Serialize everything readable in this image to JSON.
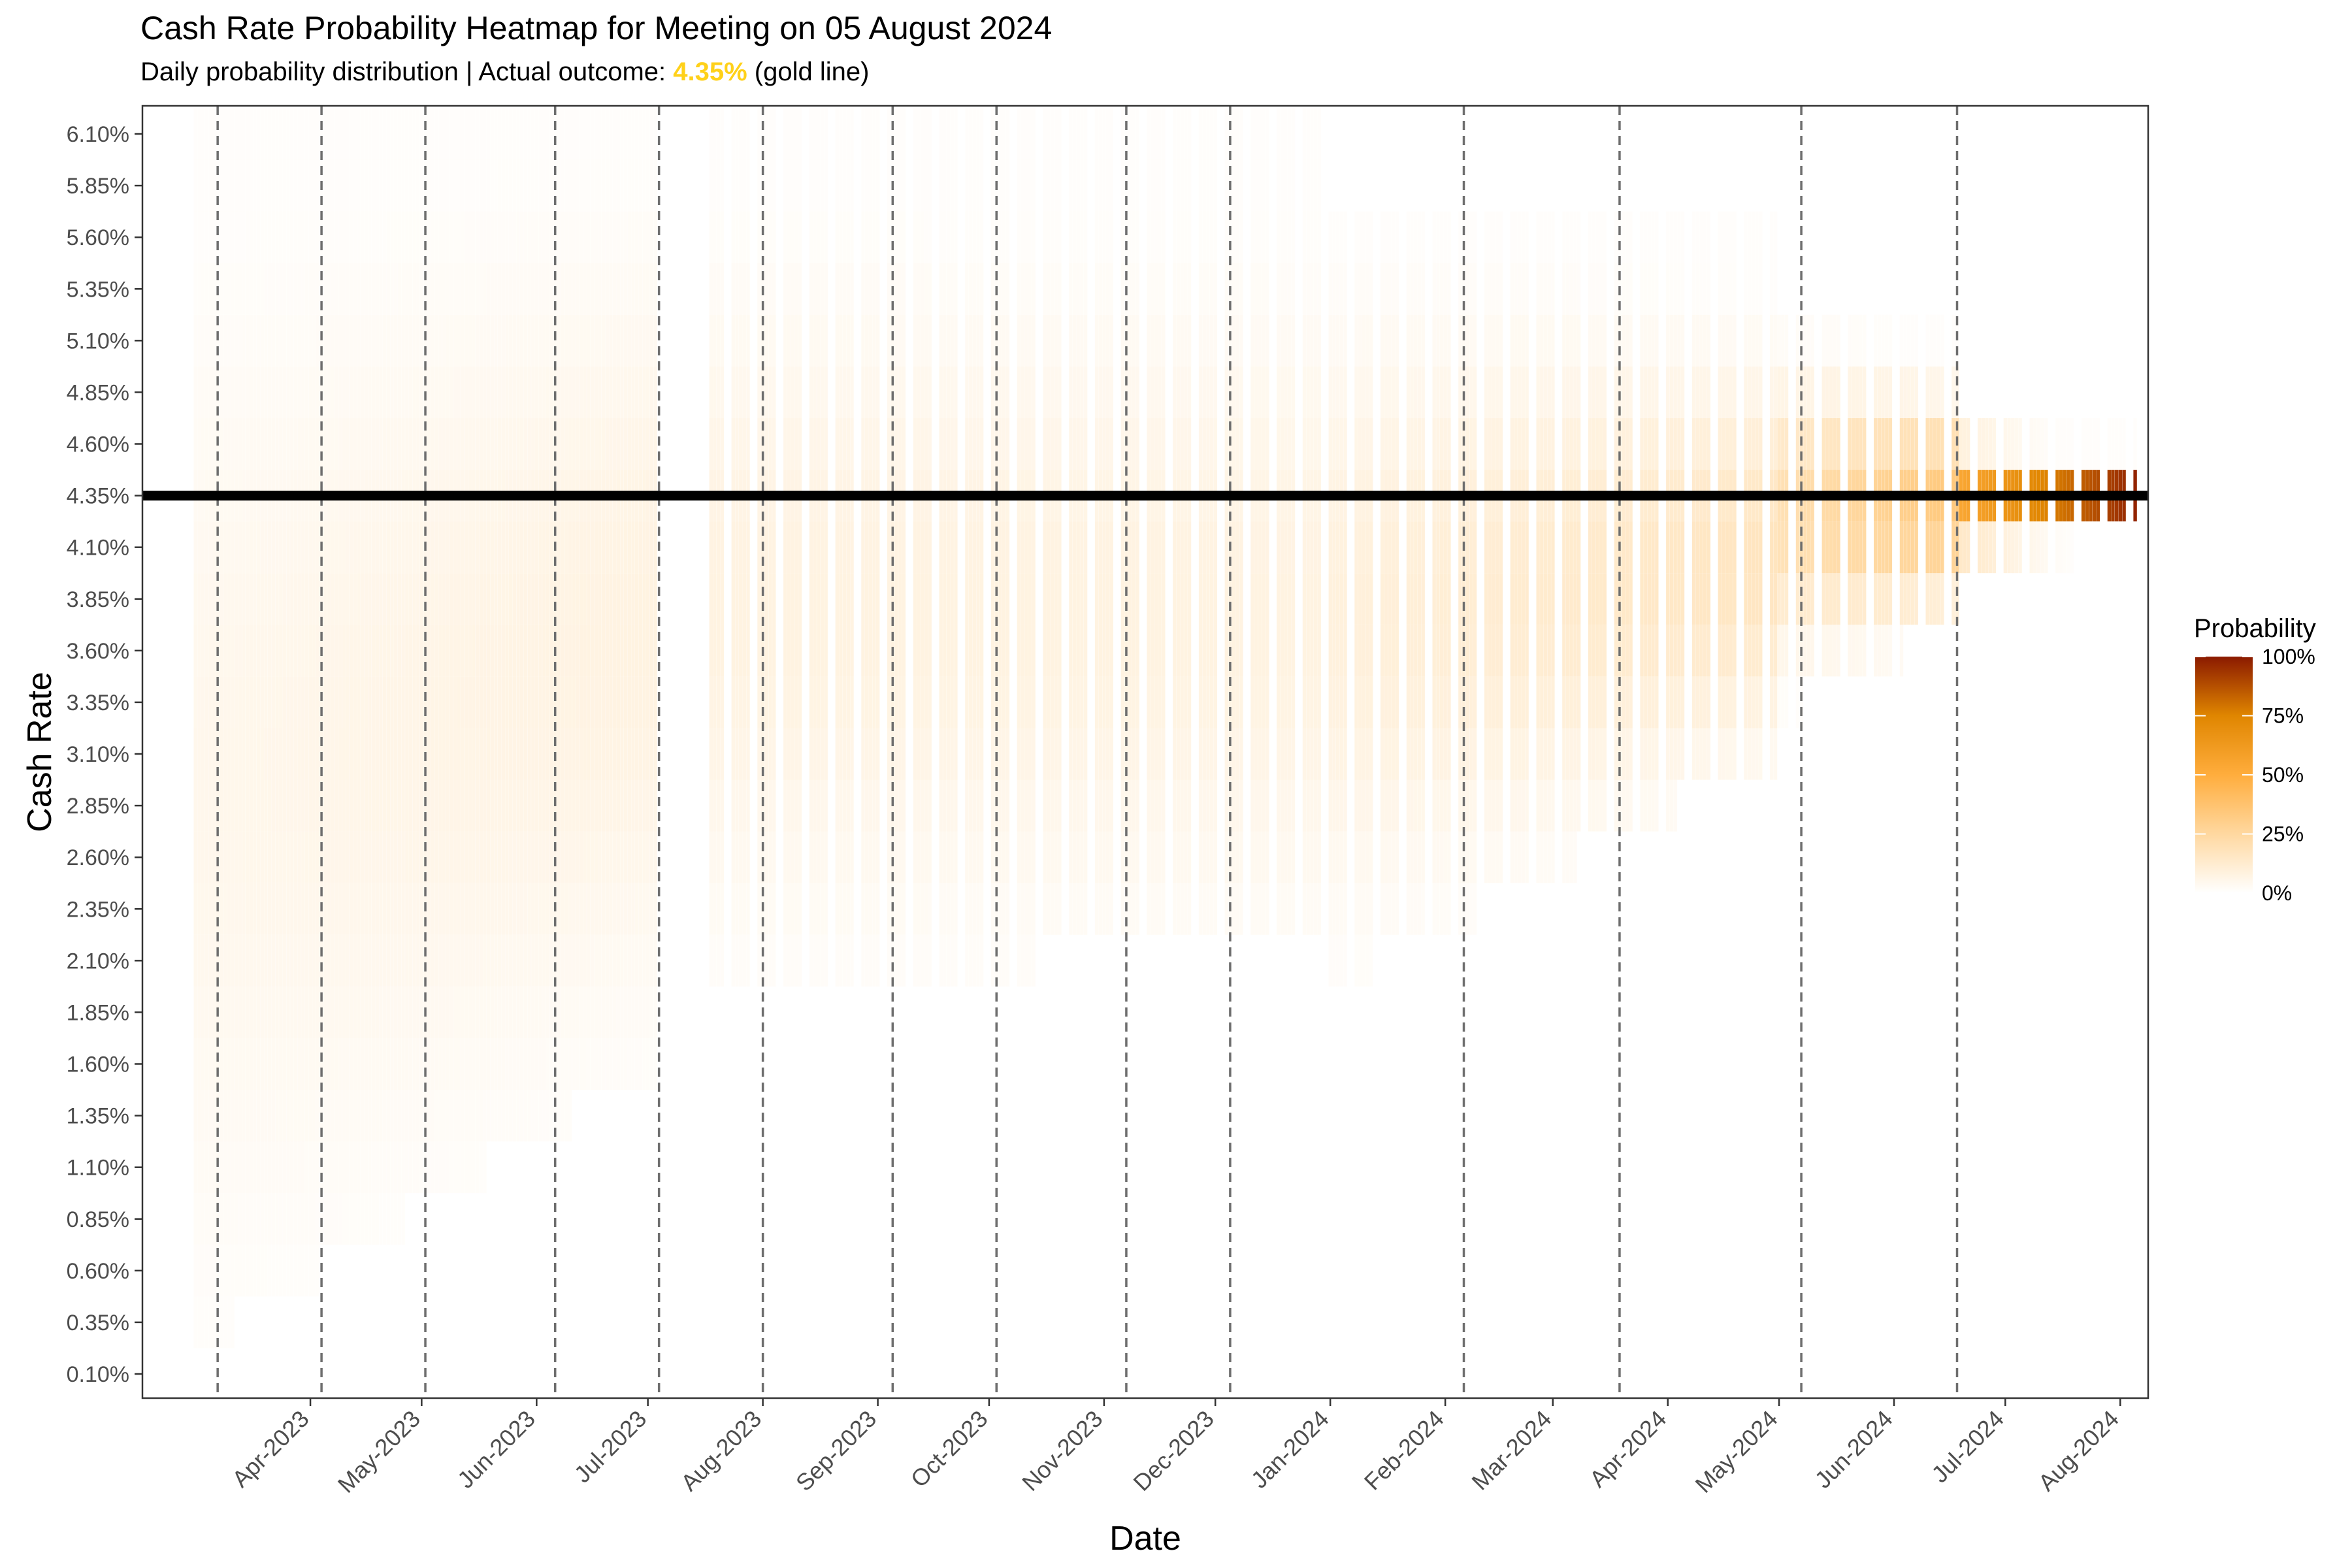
{
  "chart_data": {
    "type": "heatmap",
    "title": "Cash Rate Probability Heatmap for Meeting on 05 August 2024",
    "subtitle": {
      "prefix": "Daily probability distribution | Actual outcome: ",
      "highlight": "4.35%",
      "suffix": " (gold line)"
    },
    "xlabel": "Date",
    "ylabel": "Cash Rate",
    "x_range": [
      "2023-02-20",
      "2024-08-05"
    ],
    "y_range": [
      0.1,
      6.1
    ],
    "y_step": 0.25,
    "y_ticks": [
      "0.10%",
      "0.35%",
      "0.60%",
      "0.85%",
      "1.10%",
      "1.35%",
      "1.60%",
      "1.85%",
      "2.10%",
      "2.35%",
      "2.60%",
      "2.85%",
      "3.10%",
      "3.35%",
      "3.60%",
      "3.85%",
      "4.10%",
      "4.35%",
      "4.60%",
      "4.85%",
      "5.10%",
      "5.35%",
      "5.60%",
      "5.85%",
      "6.10%"
    ],
    "x_ticks": [
      {
        "label": "Apr-2023",
        "date": "2023-04-01"
      },
      {
        "label": "May-2023",
        "date": "2023-05-01"
      },
      {
        "label": "Jun-2023",
        "date": "2023-06-01"
      },
      {
        "label": "Jul-2023",
        "date": "2023-07-01"
      },
      {
        "label": "Aug-2023",
        "date": "2023-08-01"
      },
      {
        "label": "Sep-2023",
        "date": "2023-09-01"
      },
      {
        "label": "Oct-2023",
        "date": "2023-10-01"
      },
      {
        "label": "Nov-2023",
        "date": "2023-11-01"
      },
      {
        "label": "Dec-2023",
        "date": "2023-12-01"
      },
      {
        "label": "Jan-2024",
        "date": "2024-01-01"
      },
      {
        "label": "Feb-2024",
        "date": "2024-02-01"
      },
      {
        "label": "Mar-2024",
        "date": "2024-03-01"
      },
      {
        "label": "Apr-2024",
        "date": "2024-04-01"
      },
      {
        "label": "May-2024",
        "date": "2024-05-01"
      },
      {
        "label": "Jun-2024",
        "date": "2024-06-01"
      },
      {
        "label": "Jul-2024",
        "date": "2024-07-01"
      },
      {
        "label": "Aug-2024",
        "date": "2024-08-01"
      }
    ],
    "meeting_dates": [
      "2023-03-07",
      "2023-04-04",
      "2023-05-02",
      "2023-06-06",
      "2023-07-04",
      "2023-08-01",
      "2023-09-05",
      "2023-10-03",
      "2023-11-07",
      "2023-12-05",
      "2024-02-06",
      "2024-03-19",
      "2024-05-07",
      "2024-06-18"
    ],
    "actual_outcome": 4.35,
    "legend": {
      "title": "Probability",
      "labels": [
        "100%",
        "75%",
        "50%",
        "25%",
        "0%"
      ],
      "stops": [
        {
          "p": 0,
          "color": "#FFFFFF"
        },
        {
          "p": 0.25,
          "color": "#FFD8A0"
        },
        {
          "p": 0.5,
          "color": "#FFAD3D"
        },
        {
          "p": 0.75,
          "color": "#E08600"
        },
        {
          "p": 1,
          "color": "#8B1A00"
        }
      ],
      "placement": "right"
    },
    "segments": [
      {
        "start": "2023-03-01",
        "end": "2023-07-03",
        "gaps": false,
        "center_from": 2.9,
        "center_to": 3.7,
        "spread_from": 1.55,
        "spread_to": 1.15,
        "peak_from": 0.05,
        "peak_to": 0.08,
        "min_from": 0.25,
        "min_to": 1.6,
        "max": 6.2
      },
      {
        "start": "2023-07-18",
        "end": "2023-12-31",
        "gaps": true,
        "center_from": 3.8,
        "center_to": 3.75,
        "spread_from": 1.0,
        "spread_to": 0.95,
        "peak_from": 0.08,
        "peak_to": 0.08,
        "min_from": 1.9,
        "min_to": 2.3,
        "max": 6.2
      },
      {
        "start": "2024-01-01",
        "end": "2024-04-30",
        "gaps": true,
        "center_from": 3.75,
        "center_to": 4.05,
        "spread_from": 0.9,
        "spread_to": 0.55,
        "peak_from": 0.09,
        "peak_to": 0.17,
        "min_from": 2.0,
        "min_to": 3.1,
        "max": 5.7
      },
      {
        "start": "2024-05-01",
        "end": "2024-06-18",
        "gaps": true,
        "center_from": 4.25,
        "center_to": 4.3,
        "spread_from": 0.4,
        "spread_to": 0.28,
        "peak_from": 0.2,
        "peak_to": 0.35,
        "min_from": 3.3,
        "min_to": 3.75,
        "max": 5.2
      },
      {
        "start": "2024-06-19",
        "end": "2024-08-05",
        "gaps": true,
        "center_from": 4.33,
        "center_to": 4.35,
        "spread_from": 0.14,
        "spread_to": 0.05,
        "peak_from": 0.55,
        "peak_to": 0.98,
        "min_from": 3.95,
        "min_to": 4.2,
        "max": 4.7
      }
    ]
  }
}
